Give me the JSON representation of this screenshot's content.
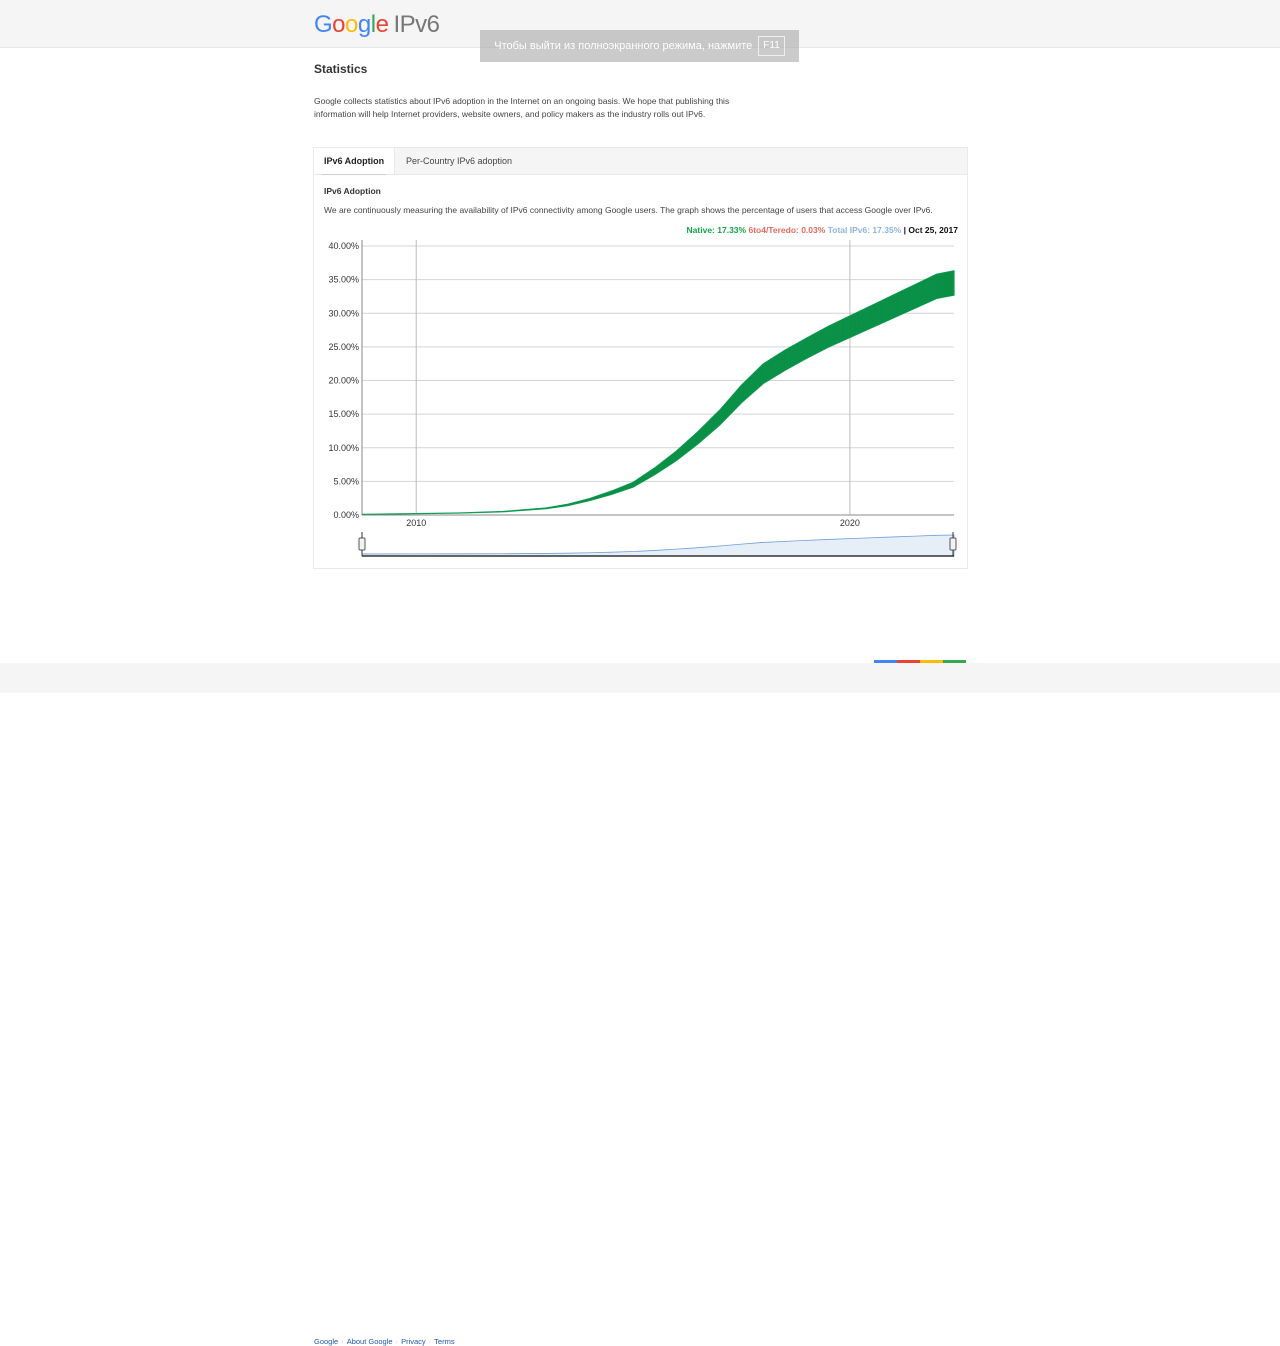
{
  "header": {
    "logo_letters": [
      "G",
      "o",
      "o",
      "g",
      "l",
      "e"
    ],
    "product": "IPv6"
  },
  "fullscreen_notice": {
    "text": "Чтобы выйти из полноэкранного режима, нажмите",
    "key": "F11"
  },
  "page": {
    "title": "Statistics",
    "intro": "Google collects statistics about IPv6 adoption in the Internet on an ongoing basis. We hope that publishing this information will help Internet providers, website owners, and policy makers as the industry rolls out IPv6."
  },
  "tabs": [
    {
      "label": "IPv6 Adoption",
      "active": true
    },
    {
      "label": "Per-Country IPv6 adoption",
      "active": false
    }
  ],
  "section": {
    "title": "IPv6 Adoption",
    "description": "We are continuously measuring the availability of IPv6 connectivity among Google users. The graph shows the percentage of users that access Google over IPv6."
  },
  "legend": {
    "native": "Native: 17.33%",
    "six_to_four": "6to4/Teredo: 0.03%",
    "total": "Total IPv6: 17.35%",
    "separator": "|",
    "date": "Oct 25, 2017"
  },
  "colors": {
    "native": "#0f9d58",
    "six_to_four": "#e06c5f",
    "total": "#8fb3de",
    "navigator": "#6f9ed8",
    "footer_bar": [
      "#4285f4",
      "#ea4335",
      "#fbbc05",
      "#34a853"
    ]
  },
  "chart_data": {
    "type": "area",
    "x": [
      2008.75,
      2010,
      2011,
      2012,
      2013,
      2013.5,
      2014,
      2014.5,
      2015,
      2015.5,
      2016,
      2016.5,
      2017,
      2017.5,
      2018,
      2018.5,
      2019,
      2019.5,
      2020,
      2020.5,
      2021,
      2021.5,
      2022,
      2022.4
    ],
    "series": [
      {
        "name": "Native",
        "values": [
          0.1,
          0.2,
          0.3,
          0.5,
          1.0,
          1.5,
          2.3,
          3.3,
          4.5,
          6.5,
          8.8,
          11.5,
          14.5,
          18.0,
          21.0,
          23.0,
          24.8,
          26.5,
          28.0,
          29.5,
          31.0,
          32.5,
          34.0,
          34.5
        ],
        "spread": [
          0,
          0,
          0,
          0.05,
          0.1,
          0.2,
          0.3,
          0.5,
          0.7,
          1.0,
          1.4,
          1.8,
          2.2,
          2.6,
          2.9,
          3.0,
          3.0,
          3.1,
          3.2,
          3.3,
          3.4,
          3.5,
          3.6,
          3.6
        ]
      }
    ],
    "ylim": [
      0,
      40
    ],
    "xlim": [
      2008.75,
      2022.4
    ],
    "y_ticks": [
      "0.00%",
      "5.00%",
      "10.00%",
      "15.00%",
      "20.00%",
      "25.00%",
      "30.00%",
      "35.00%",
      "40.00%"
    ],
    "x_ticks": [
      {
        "label": "2010",
        "value": 2010
      },
      {
        "label": "2020",
        "value": 2020
      }
    ],
    "grid": true
  }
}
